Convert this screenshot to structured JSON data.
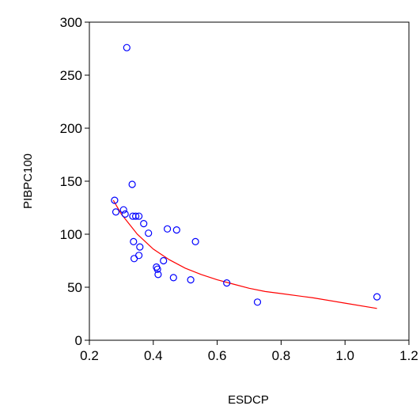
{
  "chart_data": {
    "type": "scatter",
    "xlabel": "ESDCP",
    "ylabel": "PIBPC100",
    "xlim": [
      0.2,
      1.2
    ],
    "ylim": [
      0,
      300
    ],
    "xticks": [
      {
        "value": 0.2,
        "label": "0.2"
      },
      {
        "value": 0.4,
        "label": "0.4"
      },
      {
        "value": 0.6,
        "label": "0.6"
      },
      {
        "value": 0.8,
        "label": "0.8"
      },
      {
        "value": 1.0,
        "label": "1.0"
      },
      {
        "value": 1.2,
        "label": "1.2"
      }
    ],
    "yticks": [
      {
        "value": 0,
        "label": "0"
      },
      {
        "value": 50,
        "label": "50"
      },
      {
        "value": 100,
        "label": "100"
      },
      {
        "value": 150,
        "label": "150"
      },
      {
        "value": 200,
        "label": "200"
      },
      {
        "value": 250,
        "label": "250"
      },
      {
        "value": 300,
        "label": "300"
      }
    ],
    "grid": false,
    "point_color": "#0000ff",
    "fit_color": "#ff0000",
    "points": [
      {
        "x": 0.317,
        "y": 276
      },
      {
        "x": 0.279,
        "y": 132
      },
      {
        "x": 0.283,
        "y": 121
      },
      {
        "x": 0.307,
        "y": 123
      },
      {
        "x": 0.312,
        "y": 119
      },
      {
        "x": 0.334,
        "y": 147
      },
      {
        "x": 0.336,
        "y": 117
      },
      {
        "x": 0.345,
        "y": 117
      },
      {
        "x": 0.355,
        "y": 117
      },
      {
        "x": 0.37,
        "y": 110
      },
      {
        "x": 0.385,
        "y": 101
      },
      {
        "x": 0.338,
        "y": 93
      },
      {
        "x": 0.358,
        "y": 88
      },
      {
        "x": 0.355,
        "y": 80
      },
      {
        "x": 0.34,
        "y": 77
      },
      {
        "x": 0.444,
        "y": 105
      },
      {
        "x": 0.473,
        "y": 104
      },
      {
        "x": 0.532,
        "y": 93
      },
      {
        "x": 0.432,
        "y": 75
      },
      {
        "x": 0.41,
        "y": 69
      },
      {
        "x": 0.413,
        "y": 67
      },
      {
        "x": 0.415,
        "y": 62
      },
      {
        "x": 0.463,
        "y": 59
      },
      {
        "x": 0.517,
        "y": 57
      },
      {
        "x": 0.63,
        "y": 54
      },
      {
        "x": 0.726,
        "y": 36
      },
      {
        "x": 1.1,
        "y": 41
      }
    ],
    "fit_line": [
      {
        "x": 0.275,
        "y": 132
      },
      {
        "x": 0.3,
        "y": 119
      },
      {
        "x": 0.35,
        "y": 100
      },
      {
        "x": 0.4,
        "y": 86
      },
      {
        "x": 0.45,
        "y": 76
      },
      {
        "x": 0.5,
        "y": 68
      },
      {
        "x": 0.55,
        "y": 62
      },
      {
        "x": 0.6,
        "y": 57
      },
      {
        "x": 0.65,
        "y": 53
      },
      {
        "x": 0.7,
        "y": 49
      },
      {
        "x": 0.75,
        "y": 46
      },
      {
        "x": 0.8,
        "y": 44
      },
      {
        "x": 0.9,
        "y": 40
      },
      {
        "x": 1.0,
        "y": 35
      },
      {
        "x": 1.1,
        "y": 30
      }
    ]
  }
}
